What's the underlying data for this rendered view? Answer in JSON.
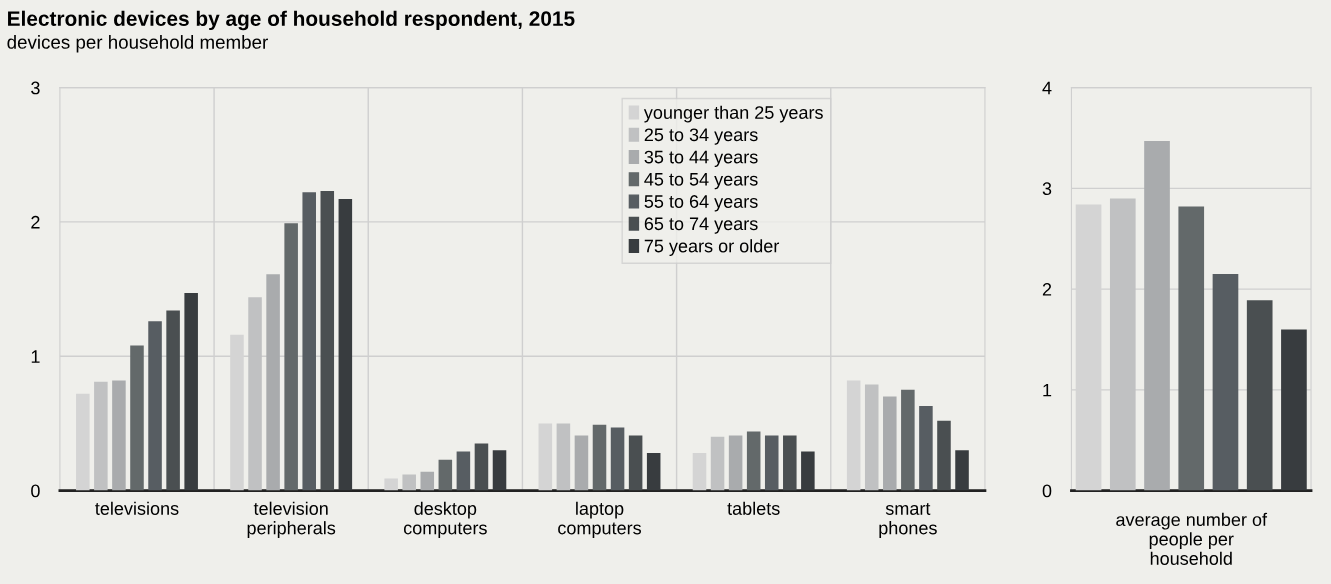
{
  "chart_data": [
    {
      "type": "bar",
      "title": "Electronic devices by age of household respondent, 2015",
      "subtitle": "devices per household member",
      "categories": [
        "televisions",
        "television\nperipherals",
        "desktop\ncomputers",
        "laptop\ncomputers",
        "tablets",
        "smart\nphones"
      ],
      "series": [
        {
          "name": "younger than 25 years",
          "color": "#d4d4d4",
          "values": [
            0.72,
            1.16,
            0.09,
            0.5,
            0.28,
            0.82
          ]
        },
        {
          "name": "25 to 34 years",
          "color": "#c0c1c2",
          "values": [
            0.81,
            1.44,
            0.12,
            0.5,
            0.4,
            0.79
          ]
        },
        {
          "name": "35 to 44 years",
          "color": "#a9abad",
          "values": [
            0.82,
            1.61,
            0.14,
            0.41,
            0.41,
            0.7
          ]
        },
        {
          "name": "45 to 54 years",
          "color": "#63696a",
          "values": [
            1.08,
            1.99,
            0.23,
            0.49,
            0.44,
            0.75
          ]
        },
        {
          "name": "55 to 64 years",
          "color": "#575d62",
          "values": [
            1.26,
            2.22,
            0.29,
            0.47,
            0.41,
            0.63
          ]
        },
        {
          "name": "65 to 74 years",
          "color": "#4a4f51",
          "values": [
            1.34,
            2.23,
            0.35,
            0.41,
            0.41,
            0.52
          ]
        },
        {
          "name": "75 years or older",
          "color": "#383c3f",
          "values": [
            1.47,
            2.17,
            0.3,
            0.28,
            0.29,
            0.3
          ]
        }
      ],
      "ylim": [
        0,
        3
      ],
      "yticks": [
        0,
        1,
        2,
        3
      ],
      "grid": true,
      "legend": "top right"
    },
    {
      "type": "bar",
      "xlabel": "average number of\npeople per\nhousehold",
      "categories": [
        null,
        null,
        null,
        null,
        null,
        null,
        null
      ],
      "values": [
        2.84,
        2.9,
        3.47,
        2.82,
        2.15,
        1.89,
        1.6
      ],
      "colors": [
        "#d4d4d4",
        "#c0c1c2",
        "#a9abad",
        "#63696a",
        "#575d62",
        "#4a4f51",
        "#383c3f"
      ],
      "ylim": [
        0,
        4
      ],
      "yticks": [
        0,
        1,
        2,
        3,
        4
      ],
      "grid": true
    }
  ]
}
